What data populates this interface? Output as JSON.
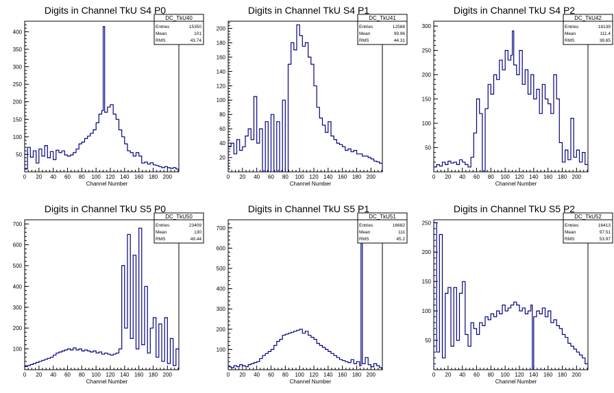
{
  "chart_data": [
    {
      "type": "histogram",
      "title": "Digits in Channel TkU S4 P0",
      "xlabel": "Channel Number",
      "xlim": [
        0,
        216
      ],
      "ylim": [
        0,
        430
      ],
      "xticks": [
        0,
        20,
        40,
        60,
        80,
        100,
        120,
        140,
        160,
        180,
        200
      ],
      "yticks": [
        50,
        100,
        150,
        200,
        250,
        300,
        350,
        400
      ],
      "stats": {
        "name": "DC_TkU40",
        "entries": "15350",
        "mean": "101",
        "rms": "43.74"
      },
      "x": [
        0,
        4,
        8,
        12,
        16,
        20,
        24,
        28,
        32,
        36,
        40,
        44,
        48,
        52,
        56,
        60,
        64,
        68,
        72,
        76,
        80,
        84,
        88,
        92,
        96,
        100,
        104,
        108,
        110,
        112,
        116,
        120,
        124,
        128,
        132,
        136,
        140,
        144,
        148,
        152,
        156,
        160,
        164,
        168,
        172,
        176,
        180,
        184,
        188,
        192,
        196,
        200,
        204,
        208,
        212
      ],
      "values": [
        8,
        70,
        42,
        60,
        25,
        65,
        45,
        75,
        40,
        58,
        35,
        62,
        55,
        60,
        48,
        45,
        48,
        55,
        65,
        80,
        85,
        95,
        102,
        110,
        120,
        140,
        165,
        175,
        415,
        170,
        185,
        192,
        165,
        150,
        120,
        100,
        80,
        60,
        55,
        45,
        55,
        45,
        25,
        28,
        22,
        26,
        20,
        18,
        15,
        12,
        15,
        12,
        10,
        12,
        8
      ]
    },
    {
      "type": "histogram",
      "title": "Digits in Channel TkU S4 P1",
      "xlabel": "Channel Number",
      "xlim": [
        0,
        216
      ],
      "ylim": [
        0,
        210
      ],
      "xticks": [
        0,
        20,
        40,
        60,
        80,
        100,
        120,
        140,
        160,
        180,
        200
      ],
      "yticks": [
        20,
        40,
        60,
        80,
        100,
        120,
        140,
        160,
        180,
        200
      ],
      "stats": {
        "name": "DC_TkU41",
        "entries": "12568",
        "mean": "99.96",
        "rms": "44.31"
      },
      "x": [
        0,
        4,
        8,
        12,
        16,
        20,
        24,
        28,
        32,
        36,
        40,
        44,
        48,
        52,
        56,
        60,
        64,
        68,
        72,
        76,
        80,
        84,
        88,
        92,
        96,
        100,
        104,
        108,
        112,
        116,
        120,
        124,
        128,
        132,
        136,
        140,
        144,
        148,
        152,
        156,
        160,
        164,
        168,
        172,
        176,
        180,
        184,
        188,
        192,
        196,
        200,
        204,
        208,
        212
      ],
      "values": [
        35,
        40,
        25,
        45,
        30,
        35,
        50,
        60,
        45,
        105,
        40,
        60,
        0,
        70,
        0,
        80,
        0,
        70,
        0,
        100,
        0,
        150,
        180,
        170,
        205,
        190,
        175,
        180,
        160,
        150,
        120,
        90,
        75,
        65,
        55,
        70,
        50,
        45,
        40,
        38,
        35,
        30,
        32,
        28,
        30,
        25,
        25,
        22,
        22,
        20,
        18,
        15,
        14,
        12
      ]
    },
    {
      "type": "histogram",
      "title": "Digits in Channel TkU S4 P2",
      "xlabel": "Channel Number",
      "xlim": [
        0,
        216
      ],
      "ylim": [
        0,
        310
      ],
      "xticks": [
        0,
        20,
        40,
        60,
        80,
        100,
        120,
        140,
        160,
        180,
        200
      ],
      "yticks": [
        50,
        100,
        150,
        200,
        250,
        300
      ],
      "stats": {
        "name": "DC_TkU42",
        "entries": "18139",
        "mean": "111.4",
        "rms": "38.65"
      },
      "x": [
        0,
        4,
        8,
        12,
        16,
        20,
        24,
        28,
        32,
        36,
        40,
        44,
        48,
        52,
        56,
        60,
        64,
        68,
        72,
        76,
        80,
        84,
        88,
        92,
        96,
        100,
        104,
        108,
        110,
        112,
        116,
        120,
        124,
        128,
        132,
        136,
        140,
        144,
        148,
        152,
        156,
        160,
        164,
        168,
        172,
        176,
        180,
        184,
        188,
        192,
        196,
        200,
        204,
        208,
        212
      ],
      "values": [
        10,
        15,
        12,
        20,
        15,
        22,
        18,
        20,
        15,
        25,
        20,
        15,
        10,
        30,
        80,
        150,
        120,
        0,
        130,
        180,
        160,
        200,
        190,
        230,
        210,
        250,
        230,
        240,
        290,
        220,
        200,
        250,
        180,
        210,
        160,
        200,
        150,
        170,
        120,
        180,
        150,
        140,
        120,
        200,
        150,
        60,
        20,
        45,
        25,
        110,
        30,
        45,
        20,
        40,
        15
      ]
    },
    {
      "type": "histogram",
      "title": "Digits in Channel TkU S5 P0",
      "xlabel": "Channel Number",
      "xlim": [
        0,
        216
      ],
      "ylim": [
        0,
        720
      ],
      "xticks": [
        0,
        20,
        40,
        60,
        80,
        100,
        120,
        140,
        160,
        180,
        200
      ],
      "yticks": [
        100,
        200,
        300,
        400,
        500,
        600,
        700
      ],
      "stats": {
        "name": "DC_TkU50",
        "entries": "23409",
        "mean": "130",
        "rms": "49.44"
      },
      "x": [
        0,
        4,
        8,
        12,
        16,
        20,
        24,
        28,
        32,
        36,
        40,
        44,
        48,
        52,
        56,
        60,
        64,
        68,
        72,
        76,
        80,
        84,
        88,
        92,
        96,
        100,
        104,
        108,
        112,
        116,
        120,
        124,
        128,
        132,
        136,
        140,
        144,
        148,
        152,
        156,
        160,
        164,
        168,
        172,
        176,
        180,
        184,
        188,
        192,
        196,
        200,
        204,
        208,
        212
      ],
      "values": [
        15,
        20,
        25,
        30,
        35,
        40,
        45,
        50,
        55,
        60,
        70,
        80,
        85,
        90,
        95,
        100,
        95,
        105,
        95,
        100,
        90,
        95,
        90,
        85,
        90,
        80,
        85,
        75,
        80,
        75,
        70,
        75,
        80,
        100,
        500,
        200,
        650,
        150,
        550,
        100,
        680,
        120,
        400,
        80,
        200,
        250,
        60,
        220,
        40,
        250,
        30,
        150,
        20,
        100
      ]
    },
    {
      "type": "histogram",
      "title": "Digits in Channel TkU S5 P1",
      "xlabel": "Channel Number",
      "xlim": [
        0,
        216
      ],
      "ylim": [
        0,
        740
      ],
      "xticks": [
        0,
        20,
        40,
        60,
        80,
        100,
        120,
        140,
        160,
        180,
        200
      ],
      "yticks": [
        100,
        200,
        300,
        400,
        500,
        600,
        700
      ],
      "stats": {
        "name": "DC_TkU51",
        "entries": "16682",
        "mean": "111",
        "rms": "45.2"
      },
      "x": [
        0,
        4,
        8,
        12,
        16,
        20,
        24,
        28,
        32,
        36,
        40,
        44,
        48,
        52,
        56,
        60,
        64,
        68,
        72,
        76,
        80,
        84,
        88,
        92,
        96,
        100,
        104,
        108,
        112,
        116,
        120,
        124,
        128,
        132,
        136,
        140,
        144,
        148,
        152,
        156,
        160,
        164,
        168,
        172,
        176,
        180,
        184,
        186,
        188,
        192,
        196,
        200,
        204,
        208,
        212
      ],
      "values": [
        15,
        10,
        20,
        15,
        25,
        20,
        15,
        25,
        30,
        35,
        40,
        55,
        70,
        80,
        90,
        100,
        120,
        140,
        150,
        170,
        175,
        180,
        185,
        190,
        195,
        200,
        180,
        190,
        170,
        160,
        150,
        130,
        120,
        110,
        100,
        90,
        80,
        70,
        60,
        50,
        45,
        40,
        35,
        50,
        30,
        40,
        20,
        720,
        30,
        60,
        25,
        15,
        30,
        20,
        10
      ]
    },
    {
      "type": "histogram",
      "title": "Digits in Channel TkU S5 P2",
      "xlabel": "Channel Number",
      "xlim": [
        0,
        216
      ],
      "ylim": [
        0,
        255
      ],
      "xticks": [
        0,
        20,
        40,
        60,
        80,
        100,
        120,
        140,
        160,
        180,
        200
      ],
      "yticks": [
        50,
        100,
        150,
        200,
        250
      ],
      "stats": {
        "name": "DC_TkU52",
        "entries": "16413",
        "mean": "97.51",
        "rms": "53.97"
      },
      "x": [
        0,
        4,
        8,
        12,
        16,
        20,
        24,
        28,
        32,
        36,
        40,
        44,
        48,
        52,
        56,
        60,
        64,
        68,
        72,
        76,
        80,
        84,
        88,
        92,
        96,
        100,
        104,
        108,
        112,
        116,
        120,
        124,
        128,
        132,
        136,
        138,
        140,
        144,
        148,
        152,
        156,
        160,
        164,
        168,
        172,
        176,
        180,
        184,
        188,
        192,
        196,
        200,
        204,
        208,
        212
      ],
      "values": [
        250,
        30,
        230,
        20,
        130,
        140,
        40,
        140,
        50,
        130,
        150,
        60,
        40,
        80,
        70,
        60,
        80,
        75,
        90,
        85,
        95,
        90,
        100,
        95,
        110,
        100,
        105,
        110,
        115,
        110,
        100,
        105,
        95,
        100,
        110,
        0,
        90,
        100,
        95,
        105,
        90,
        100,
        80,
        85,
        75,
        70,
        60,
        55,
        45,
        40,
        35,
        30,
        25,
        20,
        10
      ]
    }
  ]
}
